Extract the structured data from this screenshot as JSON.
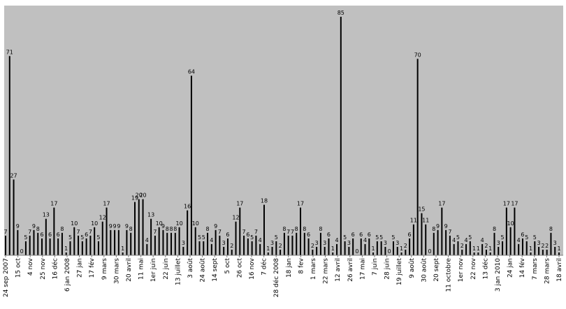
{
  "chart_data": {
    "type": "bar",
    "title": "",
    "xlabel": "",
    "ylabel": "",
    "ylim": [
      0,
      85
    ],
    "grid": false,
    "legend": "none",
    "colors": {
      "plot_background": "#c0c0c0",
      "bar": "#000000"
    },
    "x_tick_labels": [
      "24 sep 2007",
      "15 oct",
      "4 nov",
      "25 nov",
      "16 déc",
      "6 jan 2008",
      "27 jan",
      "17 fév",
      "9 mars",
      "30 mars",
      "20 avril",
      "11 mai",
      "1er juin",
      "22 juin",
      "13 juillet",
      "3 août",
      "24 août",
      "14 sept",
      "5 oct",
      "26 oct",
      "16 nov",
      "7 déc",
      "28 déc 2008",
      "18 jan",
      "8 fev",
      "1 mars",
      "22 mars",
      "12 avril",
      "26 avril",
      "17 mai",
      "7 juin",
      "28 juin",
      "19 juillet",
      "9 août",
      "30 août",
      "20 sept",
      "11 octobre",
      "1er nov",
      "22 nov",
      "13 déc",
      "3 jan 2010",
      "24 jan",
      "14 fév",
      "7 mars",
      "28 mars",
      "18 avril"
    ],
    "values": [
      7,
      71,
      27,
      9,
      0,
      5,
      7,
      9,
      8,
      6,
      13,
      6,
      17,
      6,
      8,
      1,
      5,
      10,
      7,
      5,
      6,
      7,
      10,
      5,
      12,
      17,
      9,
      9,
      9,
      1,
      9,
      8,
      19,
      20,
      20,
      4,
      13,
      7,
      10,
      9,
      8,
      8,
      8,
      10,
      3,
      16,
      64,
      10,
      5,
      5,
      8,
      4,
      9,
      7,
      3,
      6,
      2,
      12,
      17,
      7,
      6,
      5,
      7,
      4,
      18,
      1,
      3,
      5,
      2,
      8,
      7,
      7,
      8,
      17,
      8,
      6,
      2,
      3,
      8,
      3,
      6,
      1,
      4,
      85,
      5,
      3,
      6,
      0,
      6,
      4,
      6,
      1,
      5,
      5,
      3,
      0,
      5,
      3,
      1,
      2,
      6,
      11,
      70,
      15,
      11,
      0,
      8,
      9,
      17,
      9,
      7,
      4,
      5,
      2,
      4,
      5,
      1,
      1,
      4,
      2,
      1,
      8,
      3,
      5,
      17,
      10,
      17,
      4,
      6,
      5,
      1,
      5,
      3,
      2,
      2,
      8,
      3,
      1
    ]
  }
}
